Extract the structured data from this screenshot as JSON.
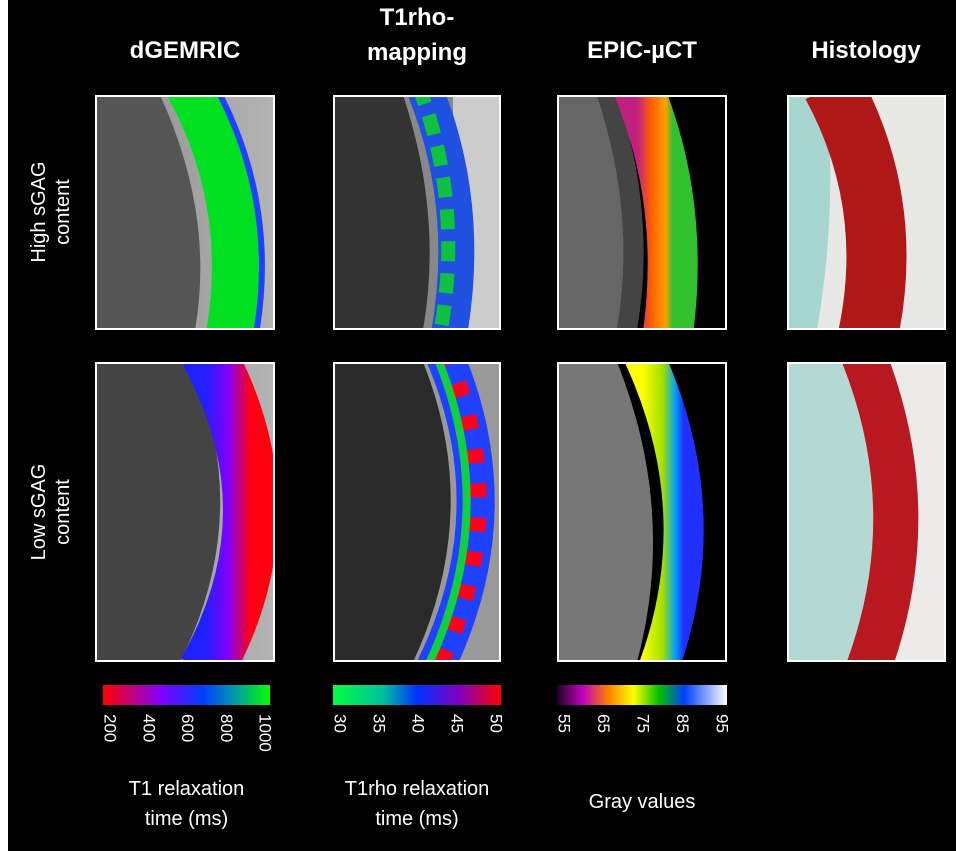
{
  "columns": [
    {
      "title_lines": [
        "dGEMRIC"
      ]
    },
    {
      "title_lines": [
        "T1rho-",
        "mapping"
      ]
    },
    {
      "title_lines": [
        "EPIC-µCT"
      ]
    },
    {
      "title_lines": [
        "Histology"
      ]
    }
  ],
  "rows": [
    {
      "label_lines": [
        "High sGAG",
        "content"
      ]
    },
    {
      "label_lines": [
        "Low sGAG",
        "content"
      ]
    }
  ],
  "colorbars": [
    {
      "ticks": [
        200,
        400,
        600,
        800,
        1000
      ],
      "label_lines": [
        "T1 relaxation",
        "time (ms)"
      ]
    },
    {
      "ticks": [
        30,
        35,
        40,
        45,
        50
      ],
      "label_lines": [
        "T1rho relaxation",
        "time (ms)"
      ]
    },
    {
      "ticks": [
        55,
        65,
        75,
        85,
        95
      ],
      "label_lines": [
        "Gray values"
      ]
    }
  ]
}
